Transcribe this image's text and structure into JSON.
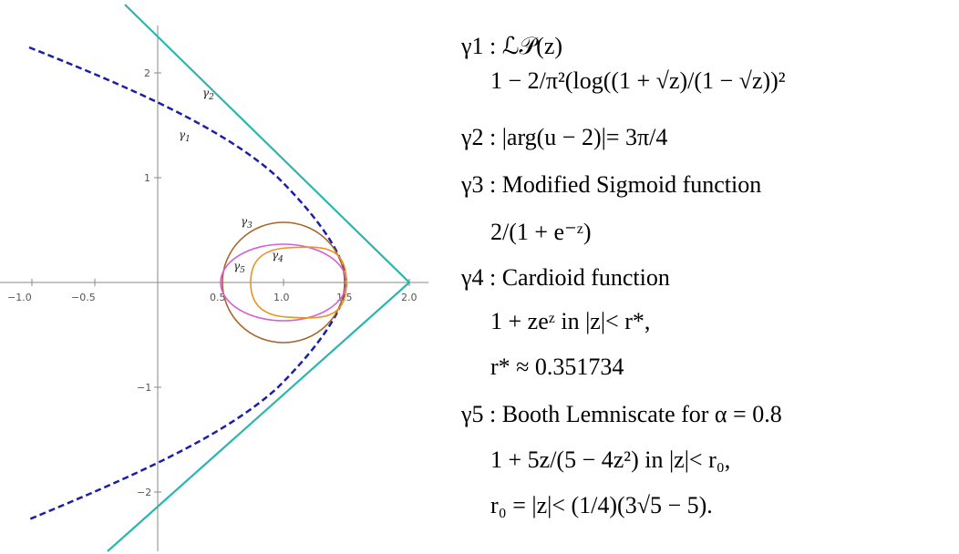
{
  "axes": {
    "x_ticks": [
      "−1.0",
      "−0.5",
      "0.5",
      "1.0",
      "1.5",
      "2.0"
    ],
    "y_ticks": [
      "2",
      "1",
      "−1",
      "−2"
    ]
  },
  "curve_labels": {
    "g1": "γ1",
    "g2": "γ2",
    "g3": "γ3",
    "g4": "γ4",
    "g5": "γ5"
  },
  "colors": {
    "gamma1": "#1b1fa8",
    "gamma2": "#2ab5b0",
    "gamma3": "#a8672a",
    "gamma4": "#e69422",
    "gamma5": "#d65fd6"
  },
  "legend": {
    "g1_name": "γ1 : ℒ𝒫(z)",
    "g1_formula": "1 − 2/π²(log((1 + √z)/(1 − √z))²",
    "g2_name": "γ2 : |arg(u − 2)|= 3π/4",
    "g3_name": "γ3 : Modified Sigmoid function",
    "g3_formula": "2/(1 + e⁻ᶻ)",
    "g4_name": "γ4 : Cardioid function",
    "g4_formula": "1 + zeᶻ in |z|< r*,",
    "g4_radius": "r* ≈ 0.351734",
    "g5_name": "γ5 : Booth Lemniscate for α = 0.8",
    "g5_formula": "1 + 5z/(5 − 4z²) in |z|< r₀,",
    "g5_radius": "r₀ = |z|< (1/4)(3√5 − 5)."
  }
}
